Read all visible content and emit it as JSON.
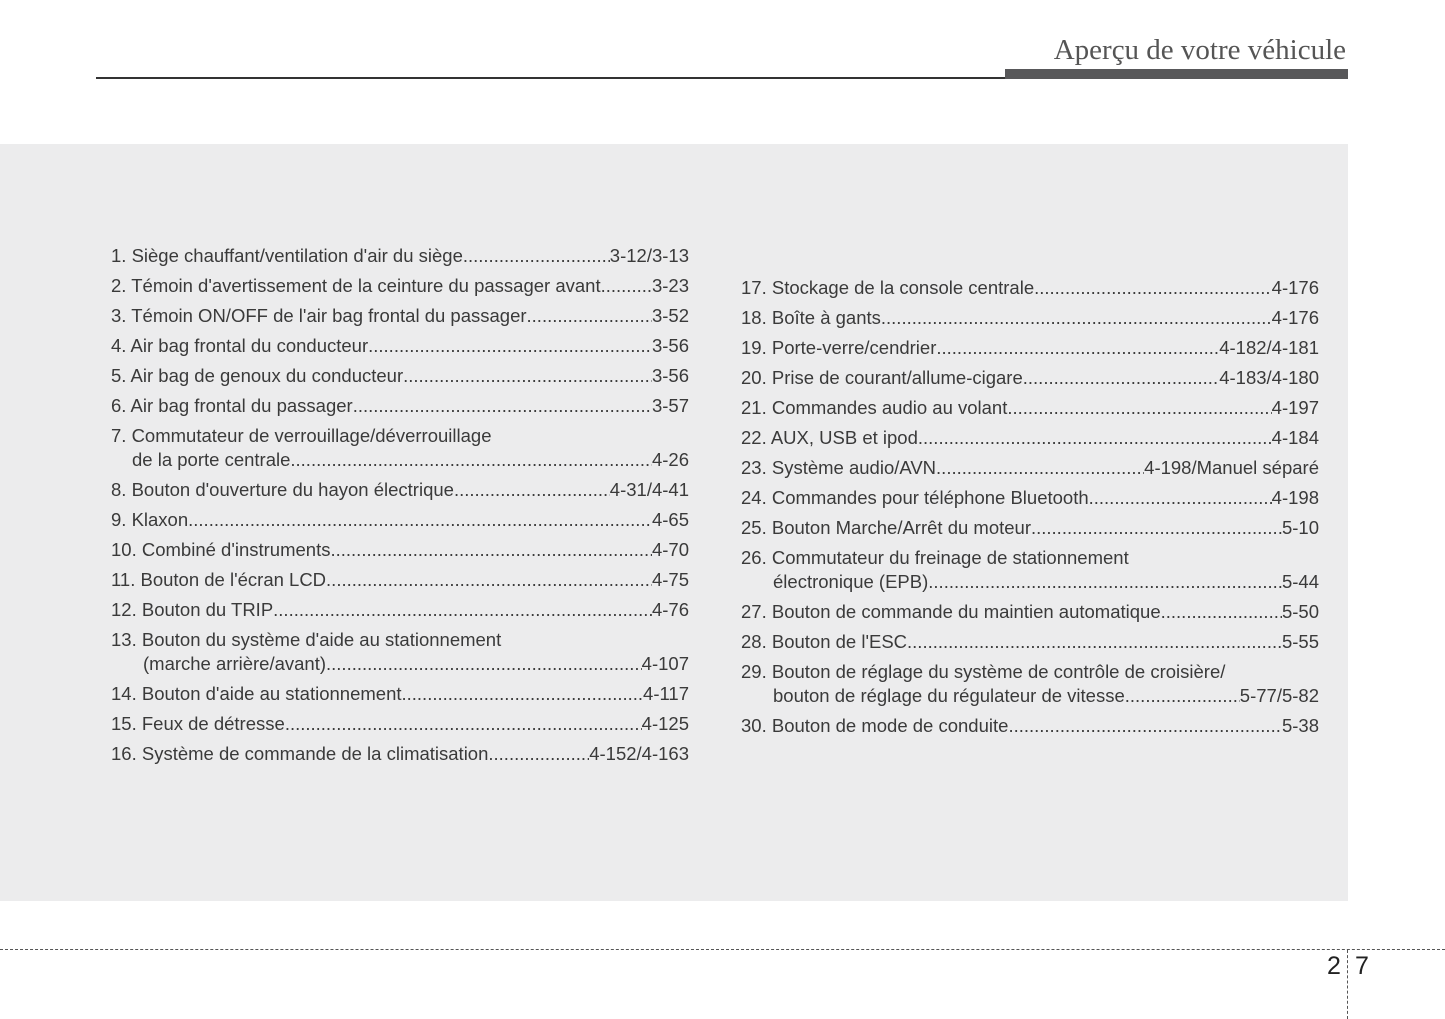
{
  "header": {
    "title": "Aperçu de votre véhicule"
  },
  "page_number": {
    "chapter": "2",
    "page": "7"
  },
  "left_items": [
    {
      "lines": [
        "1. Siège chauffant/ventilation d'air du siège "
      ],
      "page": "3-12/3-13"
    },
    {
      "lines": [
        "2. Témoin d'avertissement de la ceinture du passager avant"
      ],
      "page": "3-23"
    },
    {
      "lines": [
        "3. Témoin ON/OFF de l'air bag frontal du passager "
      ],
      "page": "3-52"
    },
    {
      "lines": [
        "4. Air bag frontal du conducteur "
      ],
      "page": "3-56"
    },
    {
      "lines": [
        "5. Air bag de genoux du conducteur "
      ],
      "page": "3-56"
    },
    {
      "lines": [
        "6. Air bag frontal du passager "
      ],
      "page": "3-57"
    },
    {
      "lines": [
        "7. Commutateur de verrouillage/déverrouillage",
        "de la porte centrale "
      ],
      "page": "4-26"
    },
    {
      "lines": [
        "8. Bouton d'ouverture du hayon électrique "
      ],
      "page": "4-31/4-41"
    },
    {
      "lines": [
        "9. Klaxon "
      ],
      "page": "4-65"
    },
    {
      "lines": [
        "10. Combiné d'instruments "
      ],
      "page": "4-70"
    },
    {
      "lines": [
        "11. Bouton de l'écran LCD "
      ],
      "page": "4-75"
    },
    {
      "lines": [
        "12. Bouton du TRIP"
      ],
      "page": "4-76"
    },
    {
      "lines": [
        "13. Bouton du système d'aide au stationnement",
        "(marche arrière/avant)  "
      ],
      "page": "4-107"
    },
    {
      "lines": [
        "14. Bouton d'aide au stationnement "
      ],
      "page": "4-117"
    },
    {
      "lines": [
        "15. Feux de détresse  "
      ],
      "page": "4-125"
    },
    {
      "lines": [
        "16. Système de commande de la climatisation "
      ],
      "page": "4-152/4-163"
    }
  ],
  "right_items": [
    {
      "lines": [
        "17. Stockage de la console centrale "
      ],
      "page": "4-176"
    },
    {
      "lines": [
        "18. Boîte à gants "
      ],
      "page": "4-176"
    },
    {
      "lines": [
        "19. Porte-verre/cendrier  "
      ],
      "page": "4-182/4-181"
    },
    {
      "lines": [
        "20. Prise de courant/allume-cigare "
      ],
      "page": "4-183/4-180"
    },
    {
      "lines": [
        "21. Commandes audio au volant"
      ],
      "page": "4-197"
    },
    {
      "lines": [
        "22. AUX, USB et ipod "
      ],
      "page": "4-184"
    },
    {
      "lines": [
        "23. Système audio/AVN "
      ],
      "page": "4-198/Manuel séparé"
    },
    {
      "lines": [
        "24. Commandes pour téléphone Bluetooth"
      ],
      "page": "4-198"
    },
    {
      "lines": [
        "25. Bouton Marche/Arrêt du moteur "
      ],
      "page": "5-10"
    },
    {
      "lines": [
        "26. Commutateur du freinage de stationnement",
        "électronique (EPB) "
      ],
      "page": "5-44"
    },
    {
      "lines": [
        "27. Bouton de commande du maintien automatique  "
      ],
      "page": "5-50"
    },
    {
      "lines": [
        "28. Bouton de l'ESC "
      ],
      "page": "5-55"
    },
    {
      "lines": [
        "29. Bouton de réglage du système de contrôle de croisière/",
        "bouton de réglage du régulateur de vitesse "
      ],
      "page": "5-77/5-82"
    },
    {
      "lines": [
        "30. Bouton de mode de conduite "
      ],
      "page": "5-38"
    }
  ]
}
